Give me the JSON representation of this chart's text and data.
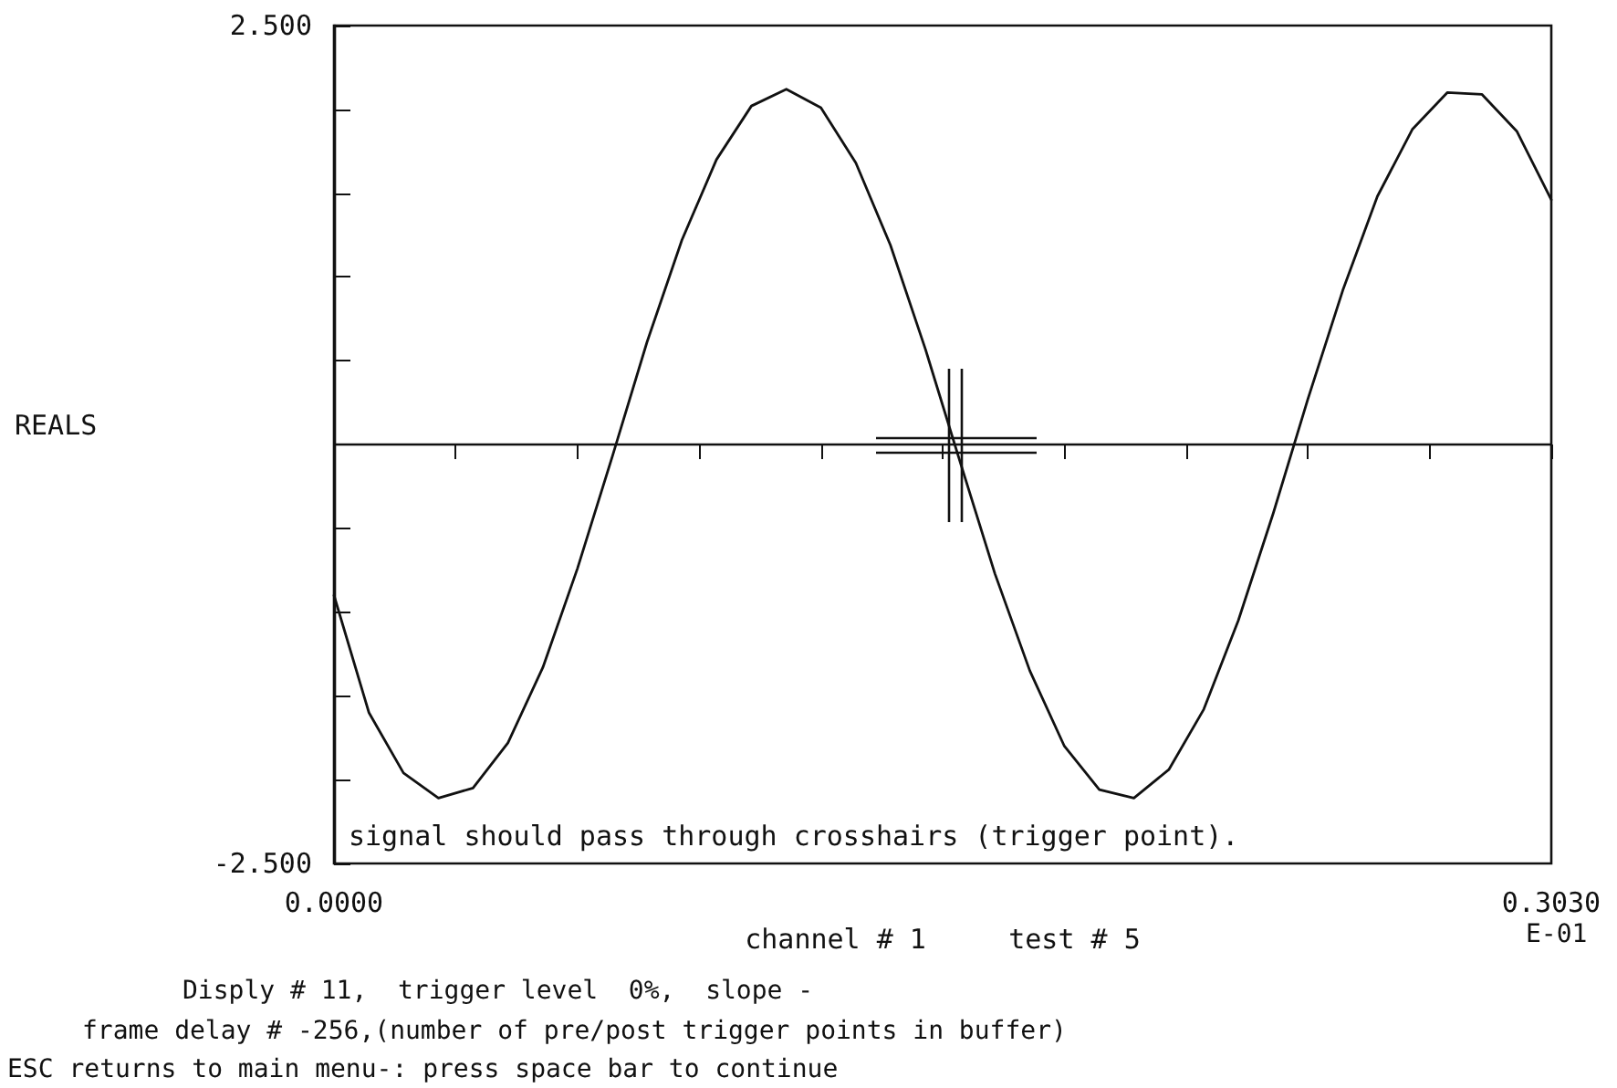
{
  "chart_data": {
    "type": "line",
    "xlabel": "channel # 1     test # 5",
    "ref_lines": [
      {
        "axis": "y",
        "value": 0,
        "color": "#111111"
      }
    ],
    "annotations": [
      "REALS",
      "signal should pass through crosshairs (trigger point).",
      "E-01",
      "Disply # 11,  trigger level  0%,  slope -",
      "frame delay # -256,(number of pre/post trigger points in buffer)",
      "ESC returns to main menu-: press space bar to continue"
    ],
    "x": [
      0,
      0.0087,
      0.0173,
      0.026,
      0.0346,
      0.0433,
      0.052,
      0.0606,
      0.0693,
      0.0779,
      0.0866,
      0.0952,
      0.1039,
      0.1126,
      0.1212,
      0.1299,
      0.1385,
      0.1472,
      0.1558,
      0.1645,
      0.1732,
      0.1818,
      0.1905,
      0.1991,
      0.2078,
      0.2165,
      0.2251,
      0.2338,
      0.2424,
      0.2511,
      0.2597,
      0.2684,
      0.2771,
      0.2857,
      0.2944,
      0.303
    ],
    "series": [
      {
        "color": "#111111",
        "values": [
          -0.9,
          -1.6,
          -1.96,
          -2.11,
          -2.05,
          -1.78,
          -1.33,
          -0.74,
          -0.07,
          0.61,
          1.22,
          1.7,
          2.02,
          2.12,
          2.01,
          1.68,
          1.19,
          0.57,
          -0.1,
          -0.77,
          -1.35,
          -1.8,
          -2.06,
          -2.11,
          -1.94,
          -1.58,
          -1.05,
          -0.41,
          0.27,
          0.92,
          1.48,
          1.88,
          2.1,
          2.09,
          1.87,
          1.46
        ]
      }
    ],
    "xlim": [
      0,
      0.303
    ],
    "xticks": [
      {
        "value": 0,
        "label": "0.0000"
      },
      {
        "value": 0.0303,
        "label": null
      },
      {
        "value": 0.0606,
        "label": null
      },
      {
        "value": 0.0909,
        "label": null
      },
      {
        "value": 0.1212,
        "label": null
      },
      {
        "value": 0.1515,
        "label": null
      },
      {
        "value": 0.1818,
        "label": null
      },
      {
        "value": 0.2121,
        "label": null
      },
      {
        "value": 0.2424,
        "label": null
      },
      {
        "value": 0.2727,
        "label": null
      },
      {
        "value": 0.303,
        "label": "0.3030"
      }
    ],
    "ylim": [
      -2.5,
      2.5
    ],
    "yticks": [
      {
        "value": -2.5,
        "label": "-2.500"
      },
      {
        "value": -2,
        "label": null
      },
      {
        "value": -1.5,
        "label": null
      },
      {
        "value": -1,
        "label": null
      },
      {
        "value": -0.5,
        "label": null
      },
      {
        "value": 0,
        "label": null
      },
      {
        "value": 0.5,
        "label": null
      },
      {
        "value": 1,
        "label": null
      },
      {
        "value": 1.5,
        "label": null
      },
      {
        "value": 2,
        "label": null
      },
      {
        "value": 2.5,
        "label": "2.500"
      }
    ],
    "grid": false,
    "marker": "none",
    "line_style": "solid"
  }
}
